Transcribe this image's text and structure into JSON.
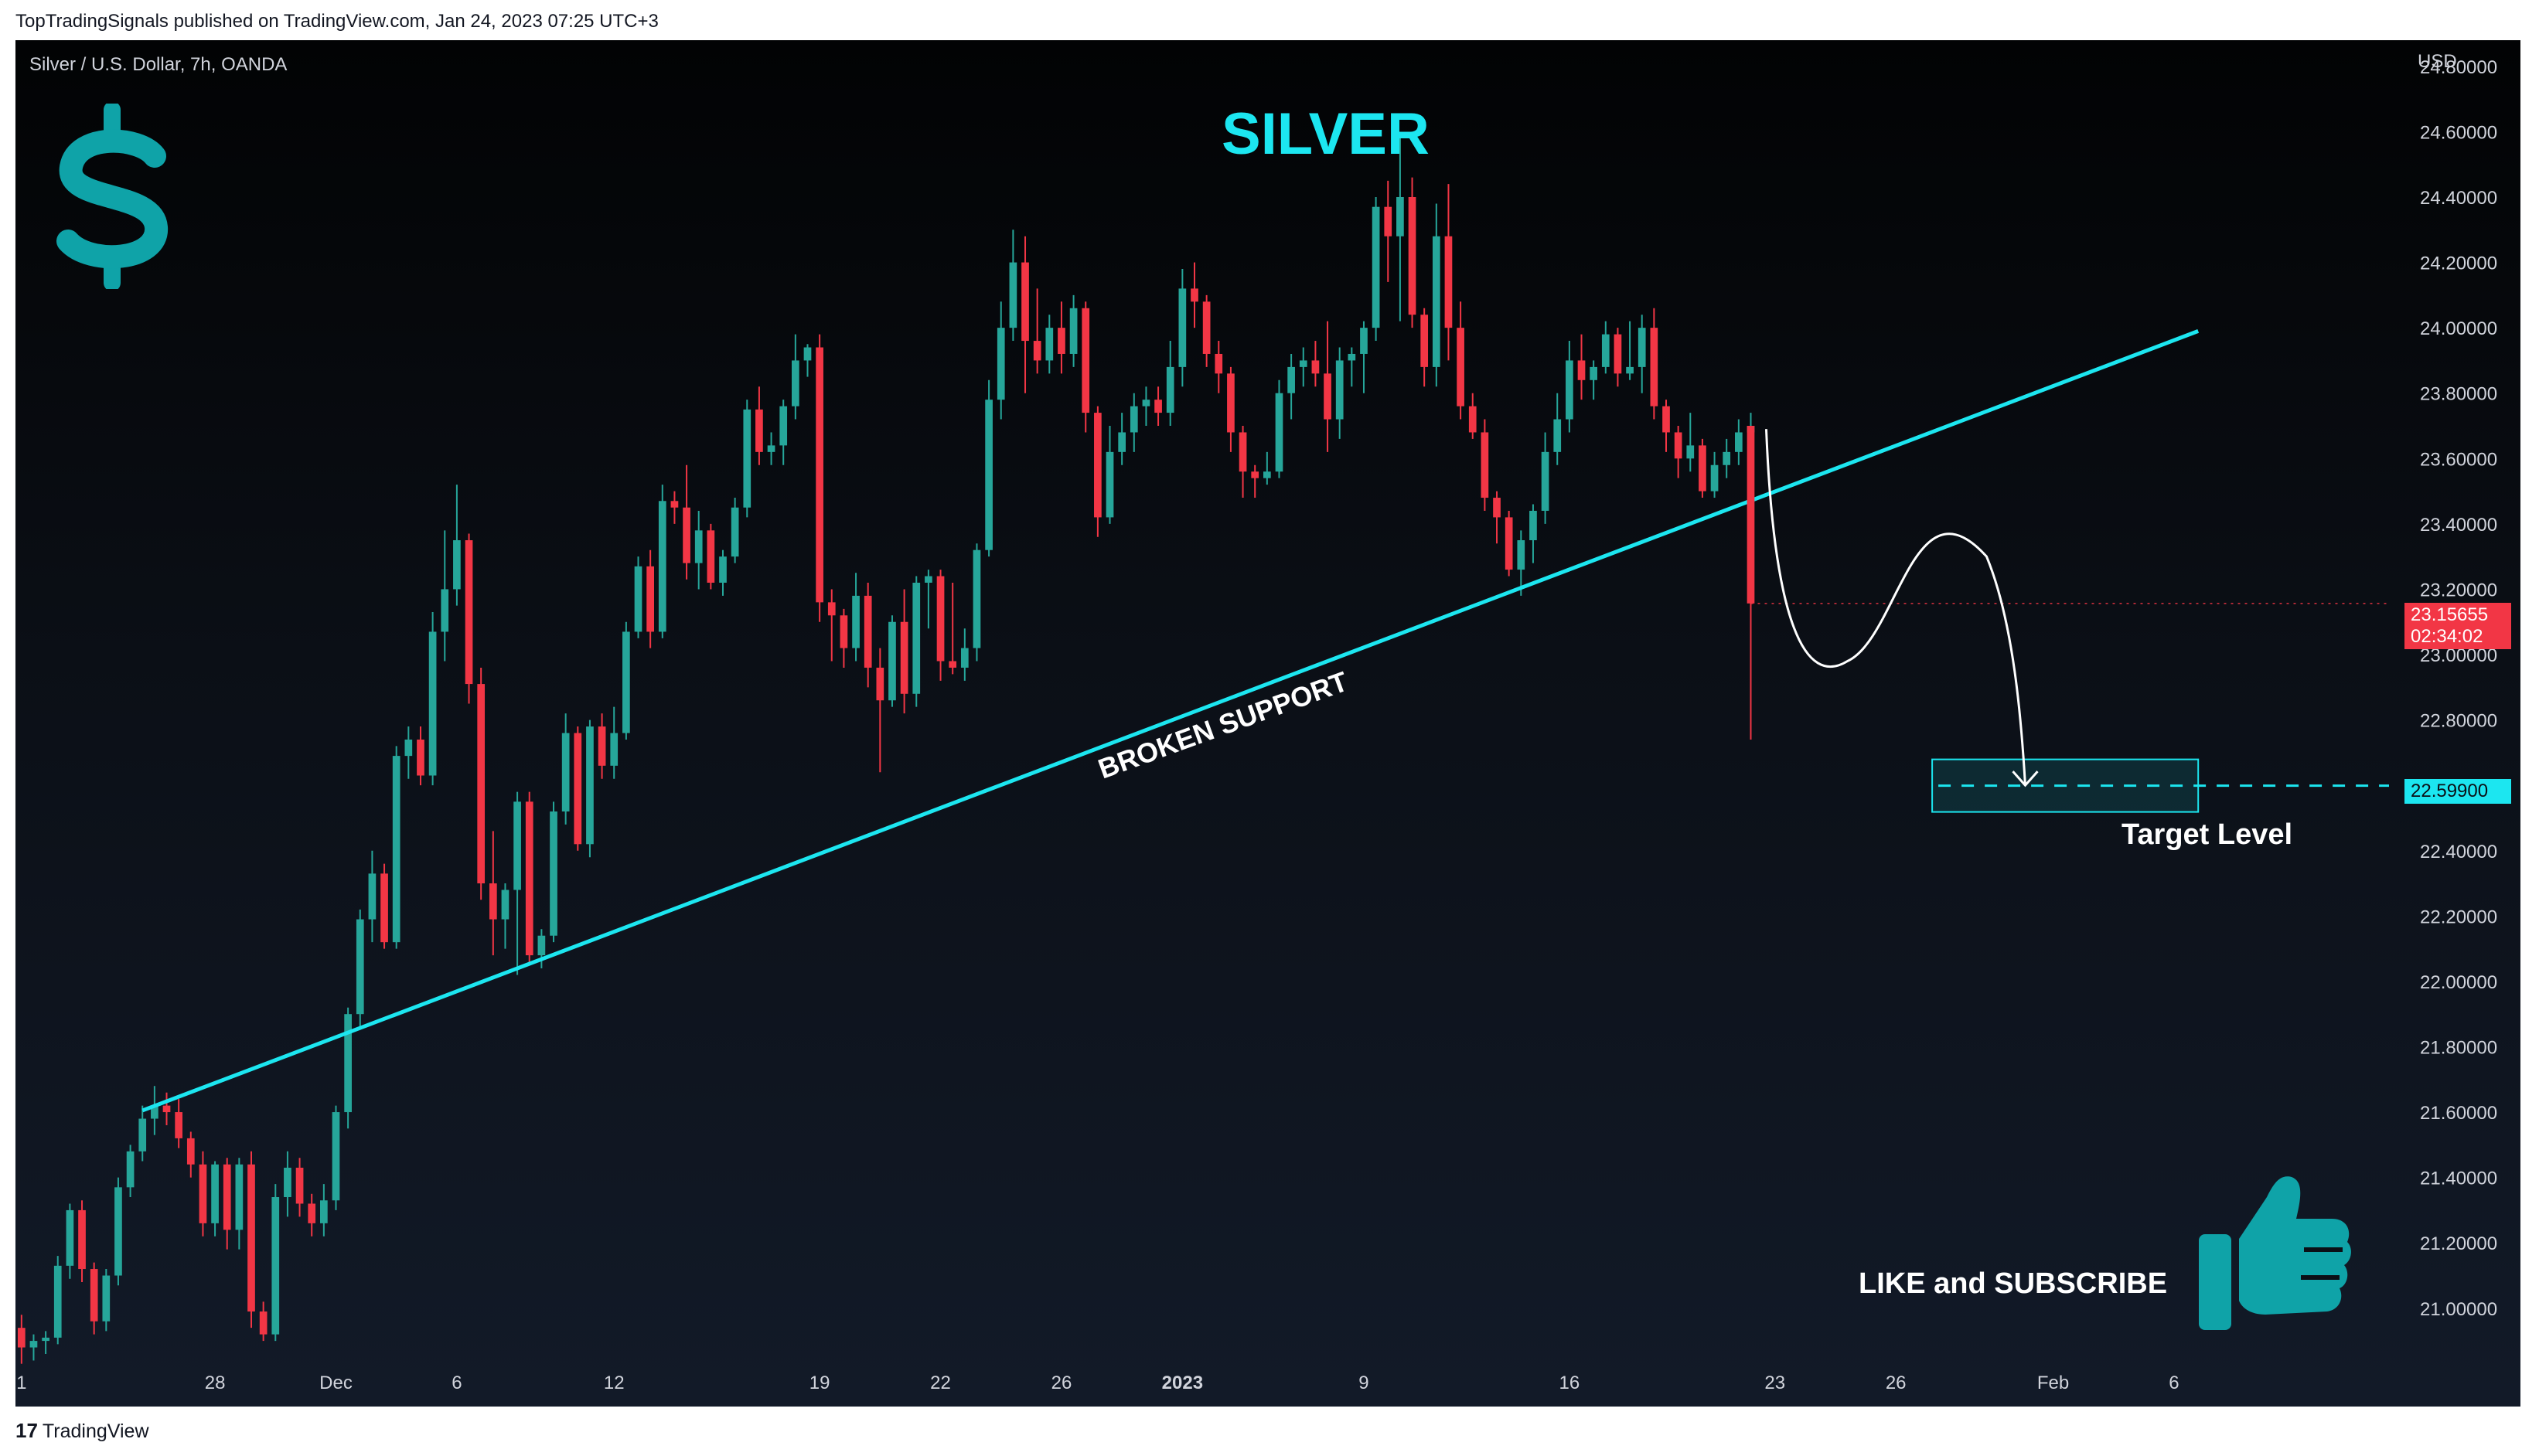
{
  "header": {
    "publisher_line": "TopTradingSignals published on TradingView.com, Jan 24, 2023 07:25 UTC+3"
  },
  "chart": {
    "symbol": "Silver / U.S. Dollar, 7h, OANDA",
    "currency": "USD",
    "title": "SILVER",
    "support_label": "BROKEN SUPPORT",
    "target_label": "Target Level",
    "cta": "LIKE and SUBSCRIBE",
    "current_price": "23.15655",
    "countdown": "02:34:02",
    "target_price": "22.59900",
    "colors": {
      "up": "#26a69a",
      "down": "#f23645",
      "accent": "#1ce6f0",
      "icon": "#0fa3a8"
    }
  },
  "icons": [
    "dollar-sign-icon",
    "thumbs-up-icon",
    "tradingview-logo-icon"
  ],
  "footer": {
    "logo_mark": "17",
    "brand": "TradingView"
  },
  "chart_data": {
    "type": "candlestick",
    "title": "SILVER",
    "ylim": [
      20.86,
      24.88
    ],
    "y_ticks": [
      "24.80000",
      "24.60000",
      "24.40000",
      "24.20000",
      "24.00000",
      "23.80000",
      "23.60000",
      "23.40000",
      "23.20000",
      "23.00000",
      "22.80000",
      "22.60000",
      "22.40000",
      "22.20000",
      "22.00000",
      "21.80000",
      "21.60000",
      "21.40000",
      "21.20000",
      "21.00000"
    ],
    "x_ticks": [
      {
        "label": "1",
        "i": 0
      },
      {
        "label": "28",
        "i": 16
      },
      {
        "label": "Dec",
        "i": 26
      },
      {
        "label": "6",
        "i": 36
      },
      {
        "label": "12",
        "i": 49
      },
      {
        "label": "19",
        "i": 66
      },
      {
        "label": "22",
        "i": 76
      },
      {
        "label": "26",
        "i": 86
      },
      {
        "label": "2023",
        "i": 96,
        "bold": true
      },
      {
        "label": "9",
        "i": 111
      },
      {
        "label": "16",
        "i": 128
      },
      {
        "label": "23",
        "i": 145
      },
      {
        "label": "26",
        "i": 155
      },
      {
        "label": "Feb",
        "i": 168
      },
      {
        "label": "6",
        "i": 178
      }
    ],
    "total_slots": 195,
    "candles": [
      [
        20.94,
        20.98,
        20.83,
        20.88
      ],
      [
        20.88,
        20.92,
        20.84,
        20.9
      ],
      [
        20.9,
        20.93,
        20.86,
        20.91
      ],
      [
        20.91,
        21.16,
        20.89,
        21.13
      ],
      [
        21.13,
        21.32,
        21.09,
        21.3
      ],
      [
        21.3,
        21.33,
        21.08,
        21.12
      ],
      [
        21.12,
        21.14,
        20.92,
        20.96
      ],
      [
        20.96,
        21.12,
        20.93,
        21.1
      ],
      [
        21.1,
        21.4,
        21.07,
        21.37
      ],
      [
        21.37,
        21.5,
        21.34,
        21.48
      ],
      [
        21.48,
        21.62,
        21.45,
        21.58
      ],
      [
        21.58,
        21.68,
        21.53,
        21.62
      ],
      [
        21.62,
        21.66,
        21.56,
        21.6
      ],
      [
        21.6,
        21.64,
        21.49,
        21.52
      ],
      [
        21.52,
        21.54,
        21.4,
        21.44
      ],
      [
        21.44,
        21.48,
        21.22,
        21.26
      ],
      [
        21.26,
        21.45,
        21.22,
        21.44
      ],
      [
        21.44,
        21.46,
        21.18,
        21.24
      ],
      [
        21.24,
        21.46,
        21.18,
        21.44
      ],
      [
        21.44,
        21.48,
        20.94,
        20.99
      ],
      [
        20.99,
        21.02,
        20.9,
        20.92
      ],
      [
        20.92,
        21.38,
        20.9,
        21.34
      ],
      [
        21.34,
        21.48,
        21.28,
        21.43
      ],
      [
        21.43,
        21.46,
        21.28,
        21.32
      ],
      [
        21.32,
        21.35,
        21.22,
        21.26
      ],
      [
        21.26,
        21.38,
        21.22,
        21.33
      ],
      [
        21.33,
        21.62,
        21.3,
        21.6
      ],
      [
        21.6,
        21.92,
        21.55,
        21.9
      ],
      [
        21.9,
        22.22,
        21.86,
        22.19
      ],
      [
        22.19,
        22.4,
        22.12,
        22.33
      ],
      [
        22.33,
        22.36,
        22.1,
        22.12
      ],
      [
        22.12,
        22.72,
        22.1,
        22.69
      ],
      [
        22.69,
        22.78,
        22.62,
        22.74
      ],
      [
        22.74,
        22.78,
        22.6,
        22.63
      ],
      [
        22.63,
        23.13,
        22.6,
        23.07
      ],
      [
        23.07,
        23.38,
        22.98,
        23.2
      ],
      [
        23.2,
        23.52,
        23.15,
        23.35
      ],
      [
        23.35,
        23.37,
        22.85,
        22.91
      ],
      [
        22.91,
        22.96,
        22.25,
        22.3
      ],
      [
        22.3,
        22.46,
        22.08,
        22.19
      ],
      [
        22.19,
        22.3,
        22.1,
        22.28
      ],
      [
        22.28,
        22.58,
        22.02,
        22.55
      ],
      [
        22.55,
        22.58,
        22.05,
        22.08
      ],
      [
        22.08,
        22.16,
        22.04,
        22.14
      ],
      [
        22.14,
        22.55,
        22.12,
        22.52
      ],
      [
        22.52,
        22.82,
        22.48,
        22.76
      ],
      [
        22.76,
        22.78,
        22.4,
        22.42
      ],
      [
        22.42,
        22.8,
        22.38,
        22.78
      ],
      [
        22.78,
        22.82,
        22.62,
        22.66
      ],
      [
        22.66,
        22.84,
        22.62,
        22.76
      ],
      [
        22.76,
        23.1,
        22.74,
        23.07
      ],
      [
        23.07,
        23.3,
        23.05,
        23.27
      ],
      [
        23.27,
        23.32,
        23.02,
        23.07
      ],
      [
        23.07,
        23.52,
        23.05,
        23.47
      ],
      [
        23.47,
        23.5,
        23.4,
        23.45
      ],
      [
        23.45,
        23.58,
        23.23,
        23.28
      ],
      [
        23.28,
        23.44,
        23.2,
        23.38
      ],
      [
        23.38,
        23.4,
        23.2,
        23.22
      ],
      [
        23.22,
        23.32,
        23.18,
        23.3
      ],
      [
        23.3,
        23.48,
        23.28,
        23.45
      ],
      [
        23.45,
        23.78,
        23.42,
        23.75
      ],
      [
        23.75,
        23.82,
        23.58,
        23.62
      ],
      [
        23.62,
        23.68,
        23.58,
        23.64
      ],
      [
        23.64,
        23.78,
        23.58,
        23.76
      ],
      [
        23.76,
        23.98,
        23.72,
        23.9
      ],
      [
        23.9,
        23.95,
        23.85,
        23.94
      ],
      [
        23.94,
        23.98,
        23.1,
        23.16
      ],
      [
        23.16,
        23.2,
        22.98,
        23.12
      ],
      [
        23.12,
        23.14,
        22.96,
        23.02
      ],
      [
        23.02,
        23.25,
        22.98,
        23.18
      ],
      [
        23.18,
        23.22,
        22.9,
        22.96
      ],
      [
        22.96,
        23.02,
        22.64,
        22.86
      ],
      [
        22.86,
        23.12,
        22.84,
        23.1
      ],
      [
        23.1,
        23.2,
        22.82,
        22.88
      ],
      [
        22.88,
        23.24,
        22.84,
        23.22
      ],
      [
        23.22,
        23.26,
        23.08,
        23.24
      ],
      [
        23.24,
        23.26,
        22.92,
        22.98
      ],
      [
        22.98,
        23.22,
        22.94,
        22.96
      ],
      [
        22.96,
        23.08,
        22.92,
        23.02
      ],
      [
        23.02,
        23.34,
        22.98,
        23.32
      ],
      [
        23.32,
        23.84,
        23.3,
        23.78
      ],
      [
        23.78,
        24.08,
        23.72,
        24.0
      ],
      [
        24.0,
        24.3,
        23.96,
        24.2
      ],
      [
        24.2,
        24.28,
        23.8,
        23.96
      ],
      [
        23.96,
        24.12,
        23.86,
        23.9
      ],
      [
        23.9,
        24.04,
        23.86,
        24.0
      ],
      [
        24.0,
        24.08,
        23.86,
        23.92
      ],
      [
        23.92,
        24.1,
        23.88,
        24.06
      ],
      [
        24.06,
        24.08,
        23.68,
        23.74
      ],
      [
        23.74,
        23.76,
        23.36,
        23.42
      ],
      [
        23.42,
        23.7,
        23.4,
        23.62
      ],
      [
        23.62,
        23.74,
        23.58,
        23.68
      ],
      [
        23.68,
        23.8,
        23.62,
        23.76
      ],
      [
        23.76,
        23.82,
        23.7,
        23.78
      ],
      [
        23.78,
        23.82,
        23.7,
        23.74
      ],
      [
        23.74,
        23.96,
        23.7,
        23.88
      ],
      [
        23.88,
        24.18,
        23.82,
        24.12
      ],
      [
        24.12,
        24.2,
        24.0,
        24.08
      ],
      [
        24.08,
        24.1,
        23.88,
        23.92
      ],
      [
        23.92,
        23.96,
        23.8,
        23.86
      ],
      [
        23.86,
        23.88,
        23.62,
        23.68
      ],
      [
        23.68,
        23.7,
        23.48,
        23.56
      ],
      [
        23.56,
        23.58,
        23.48,
        23.54
      ],
      [
        23.54,
        23.62,
        23.52,
        23.56
      ],
      [
        23.56,
        23.84,
        23.54,
        23.8
      ],
      [
        23.8,
        23.92,
        23.72,
        23.88
      ],
      [
        23.88,
        23.94,
        23.82,
        23.9
      ],
      [
        23.9,
        23.96,
        23.82,
        23.86
      ],
      [
        23.86,
        24.02,
        23.62,
        23.72
      ],
      [
        23.72,
        23.94,
        23.66,
        23.9
      ],
      [
        23.9,
        23.94,
        23.82,
        23.92
      ],
      [
        23.92,
        24.02,
        23.8,
        24.0
      ],
      [
        24.0,
        24.4,
        23.96,
        24.37
      ],
      [
        24.37,
        24.45,
        24.14,
        24.28
      ],
      [
        24.28,
        24.58,
        24.02,
        24.4
      ],
      [
        24.4,
        24.46,
        24.0,
        24.04
      ],
      [
        24.04,
        24.06,
        23.82,
        23.88
      ],
      [
        23.88,
        24.38,
        23.82,
        24.28
      ],
      [
        24.28,
        24.44,
        23.9,
        24.0
      ],
      [
        24.0,
        24.08,
        23.72,
        23.76
      ],
      [
        23.76,
        23.8,
        23.66,
        23.68
      ],
      [
        23.68,
        23.72,
        23.44,
        23.48
      ],
      [
        23.48,
        23.5,
        23.34,
        23.42
      ],
      [
        23.42,
        23.44,
        23.24,
        23.26
      ],
      [
        23.26,
        23.38,
        23.18,
        23.35
      ],
      [
        23.35,
        23.46,
        23.28,
        23.44
      ],
      [
        23.44,
        23.68,
        23.4,
        23.62
      ],
      [
        23.62,
        23.8,
        23.58,
        23.72
      ],
      [
        23.72,
        23.96,
        23.68,
        23.9
      ],
      [
        23.9,
        23.98,
        23.78,
        23.84
      ],
      [
        23.84,
        23.9,
        23.78,
        23.88
      ],
      [
        23.88,
        24.02,
        23.86,
        23.98
      ],
      [
        23.98,
        24.0,
        23.82,
        23.86
      ],
      [
        23.86,
        24.02,
        23.84,
        23.88
      ],
      [
        23.88,
        24.04,
        23.8,
        24.0
      ],
      [
        24.0,
        24.06,
        23.72,
        23.76
      ],
      [
        23.76,
        23.78,
        23.62,
        23.68
      ],
      [
        23.68,
        23.7,
        23.54,
        23.6
      ],
      [
        23.6,
        23.74,
        23.56,
        23.64
      ],
      [
        23.64,
        23.66,
        23.48,
        23.5
      ],
      [
        23.5,
        23.62,
        23.48,
        23.58
      ],
      [
        23.58,
        23.66,
        23.54,
        23.62
      ],
      [
        23.62,
        23.72,
        23.58,
        23.68
      ],
      [
        23.68,
        23.74,
        23.62,
        23.7
      ]
    ],
    "current_price": 23.15655,
    "target_price": 22.599,
    "support_line": {
      "start": {
        "i": 10,
        "price": 21.605
      },
      "end": {
        "i": 180,
        "price": 23.99
      }
    },
    "annotations": [
      "BROKEN SUPPORT",
      "Target Level",
      "LIKE and SUBSCRIBE"
    ]
  }
}
